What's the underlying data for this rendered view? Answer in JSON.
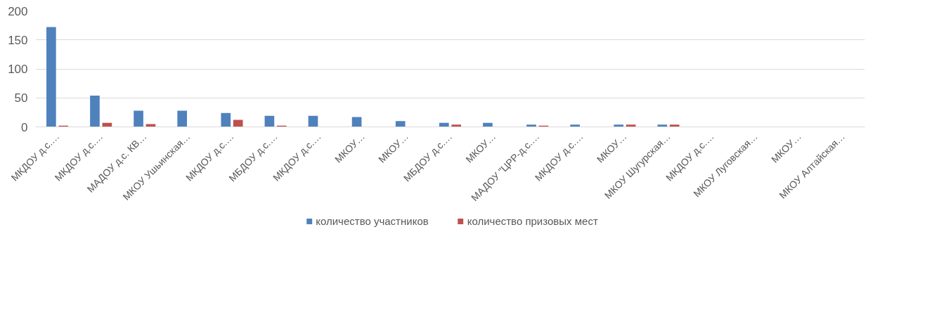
{
  "chart_data": {
    "type": "bar",
    "categories": [
      "МКДОУ д.с.…",
      "МКДОУ д.с.…",
      "МАДОУ д.с. КВ…",
      "МКОУ Ушьинская…",
      "МКДОУ д.с.…",
      "МБДОУ д.с.…",
      "МКДОУ д.с.…",
      "МКОУ…",
      "МКОУ…",
      "МБДОУ д.с.…",
      "МКОУ…",
      "МАДОУ \"ЦРР-д.с.…",
      "МКДОУ д.с.…",
      "МКОУ…",
      "МКОУ Шугурская…",
      "МКДОУ д.с.…",
      "МКОУ Луговская…",
      "МКОУ…",
      "МКОУ Алтайская…"
    ],
    "series": [
      {
        "name": "количество участников",
        "color": "#4f81bd",
        "values": [
          172,
          54,
          28,
          28,
          24,
          19,
          19,
          17,
          10,
          7,
          7,
          4,
          4,
          4,
          4,
          null,
          null,
          null,
          null
        ]
      },
      {
        "name": "количество призовых мест",
        "color": "#c0504d",
        "values": [
          2,
          7,
          5,
          null,
          12,
          2,
          null,
          null,
          null,
          4,
          null,
          2,
          null,
          4,
          4,
          null,
          null,
          null,
          null
        ]
      }
    ],
    "ylim": [
      0,
      200
    ],
    "yticks": [
      0,
      50,
      100,
      150,
      200
    ],
    "grid": "y",
    "legend": "bottom"
  }
}
